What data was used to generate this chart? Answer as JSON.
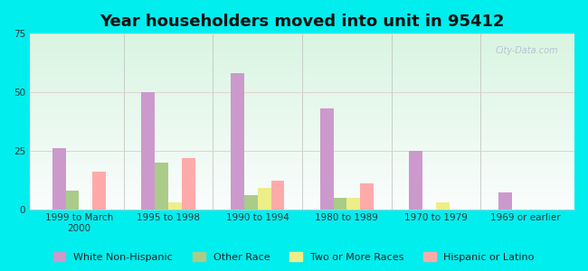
{
  "title": "Year householders moved into unit in 95412",
  "categories": [
    "1999 to March\n2000",
    "1995 to 1998",
    "1990 to 1994",
    "1980 to 1989",
    "1970 to 1979",
    "1969 or earlier"
  ],
  "series": {
    "White Non-Hispanic": [
      26,
      50,
      58,
      43,
      25,
      7
    ],
    "Other Race": [
      8,
      20,
      6,
      5,
      0,
      0
    ],
    "Two or More Races": [
      0,
      3,
      9,
      5,
      3,
      0
    ],
    "Hispanic or Latino": [
      16,
      22,
      12,
      11,
      0,
      0
    ]
  },
  "colors": {
    "White Non-Hispanic": "#cc99cc",
    "Other Race": "#aacc88",
    "Two or More Races": "#eeee88",
    "Hispanic or Latino": "#ffaaaa"
  },
  "ylim": [
    0,
    75
  ],
  "yticks": [
    0,
    25,
    50,
    75
  ],
  "background_outer": "#00eeee",
  "watermark": "City-Data.com",
  "title_fontsize": 13,
  "tick_fontsize": 7.5,
  "legend_fontsize": 8
}
